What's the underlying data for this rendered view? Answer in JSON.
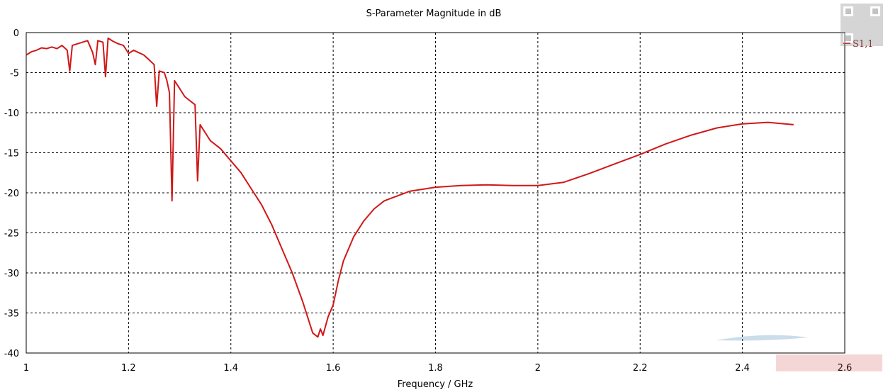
{
  "chart_data": {
    "type": "line",
    "title": "S-Parameter Magnitude in dB",
    "xlabel": "Frequency / GHz",
    "ylabel": "",
    "xlim": [
      1,
      2.6
    ],
    "ylim": [
      -40,
      0
    ],
    "xticks": [
      "1",
      "1.2",
      "1.4",
      "1.6",
      "1.8",
      "2",
      "2.2",
      "2.4",
      "2.6"
    ],
    "yticks": [
      "0",
      "-5",
      "-10",
      "-15",
      "-20",
      "-25",
      "-30",
      "-35",
      "-40"
    ],
    "grid": true,
    "legend_position": "top-right",
    "series": [
      {
        "name": "S1,1",
        "color": "#d01818",
        "x": [
          1.0,
          1.01,
          1.02,
          1.03,
          1.04,
          1.05,
          1.06,
          1.07,
          1.08,
          1.085,
          1.09,
          1.1,
          1.11,
          1.12,
          1.13,
          1.135,
          1.14,
          1.15,
          1.155,
          1.16,
          1.17,
          1.18,
          1.19,
          1.2,
          1.21,
          1.22,
          1.23,
          1.24,
          1.25,
          1.255,
          1.26,
          1.27,
          1.275,
          1.28,
          1.285,
          1.29,
          1.3,
          1.31,
          1.32,
          1.33,
          1.335,
          1.34,
          1.35,
          1.36,
          1.38,
          1.4,
          1.42,
          1.44,
          1.46,
          1.48,
          1.5,
          1.52,
          1.54,
          1.55,
          1.56,
          1.57,
          1.575,
          1.58,
          1.59,
          1.6,
          1.61,
          1.62,
          1.64,
          1.66,
          1.68,
          1.7,
          1.75,
          1.8,
          1.85,
          1.9,
          1.95,
          2.0,
          2.05,
          2.1,
          2.15,
          2.2,
          2.25,
          2.3,
          2.35,
          2.4,
          2.45,
          2.5
        ],
        "values": [
          -2.8,
          -2.4,
          -2.2,
          -1.9,
          -2.0,
          -1.8,
          -2.0,
          -1.6,
          -2.2,
          -4.8,
          -1.6,
          -1.4,
          -1.2,
          -1.0,
          -2.5,
          -4.0,
          -1.0,
          -1.2,
          -5.5,
          -0.7,
          -1.1,
          -1.4,
          -1.6,
          -2.6,
          -2.2,
          -2.5,
          -2.8,
          -3.4,
          -4.0,
          -9.2,
          -4.8,
          -5.0,
          -6.0,
          -7.5,
          -21.0,
          -6.0,
          -7.0,
          -8.0,
          -8.5,
          -9.0,
          -18.5,
          -11.5,
          -12.5,
          -13.5,
          -14.5,
          -16.0,
          -17.5,
          -19.5,
          -21.5,
          -24.0,
          -27.0,
          -30.0,
          -33.5,
          -35.5,
          -37.5,
          -38.0,
          -37.0,
          -37.8,
          -35.5,
          -34.0,
          -31.0,
          -28.5,
          -25.5,
          -23.5,
          -22.0,
          -21.0,
          -19.8,
          -19.3,
          -19.1,
          -19.0,
          -19.1,
          -19.1,
          -18.7,
          -17.6,
          -16.4,
          -15.2,
          -13.9,
          -12.8,
          -11.9,
          -11.4,
          -11.2,
          -11.5
        ]
      }
    ]
  }
}
